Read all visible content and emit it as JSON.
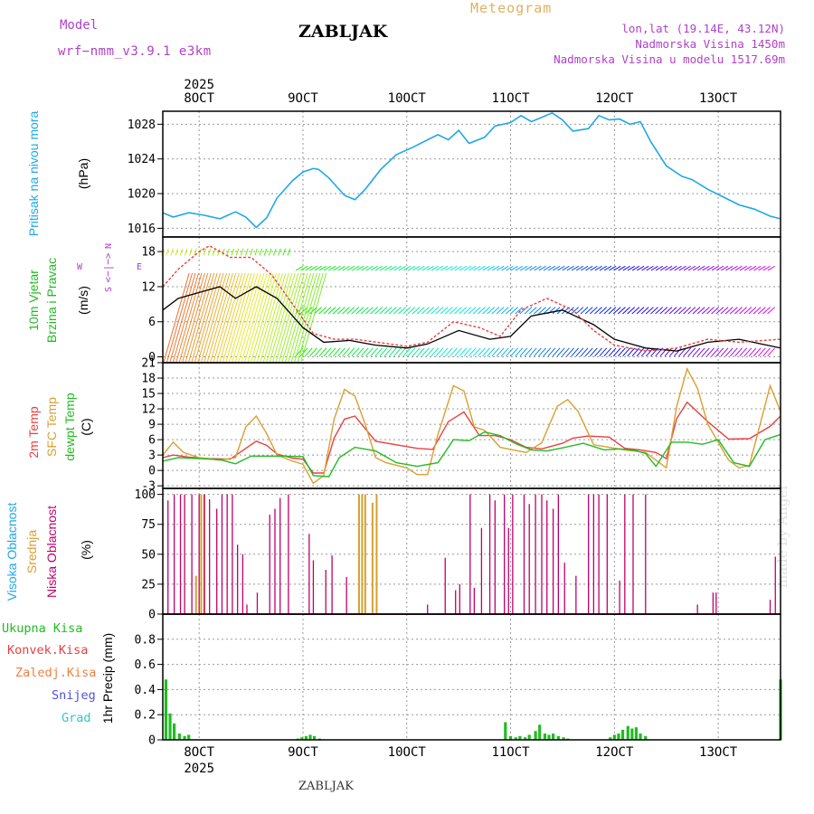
{
  "header": {
    "model_label": "Model",
    "model_version": "wrf−nmm_v3.9.1  e3km",
    "station": "ZABLJAK",
    "product": "Meteogram",
    "coords": "lon,lat (19.14E, 43.12N)",
    "elevation": "Nadmorska Visina 1450m",
    "model_elevation": "Nadmorska Visina u modelu 1517.69m",
    "footer_station": "ZABLJAK",
    "credit": "made by Angel",
    "year": "2025"
  },
  "colors": {
    "pressure": "#1ea8e8",
    "wind_axis": "#22bb22",
    "t2m": "#e84040",
    "sfc": "#d8a030",
    "dew": "#22bb22",
    "high_cloud": "#1ea8e8",
    "mid_cloud": "#d8a030",
    "low_cloud": "#c0006a",
    "total_precip": "#22bb22",
    "conv_precip": "#e84040",
    "frz_precip": "#f08040",
    "snow": "#5050e0",
    "hail": "#30c8c8",
    "gust": "#e84040",
    "direction_legend": "#b040c8"
  },
  "chart_data": [
    {
      "type": "line",
      "title": "Pritisak na nivou mora",
      "ylabel": "(hPa)",
      "xlabel": "",
      "x_ticks": [
        "8OCT",
        "9OCT",
        "10OCT",
        "11OCT",
        "12OCT",
        "13OCT"
      ],
      "x_range_days": [
        7.65,
        13.6
      ],
      "ylim": [
        1015,
        1029.5
      ],
      "y_ticks": [
        1016,
        1020,
        1024,
        1028
      ],
      "series": [
        {
          "name": "pressure",
          "x": [
            7.65,
            7.75,
            7.9,
            8.05,
            8.2,
            8.35,
            8.45,
            8.55,
            8.65,
            8.75,
            8.9,
            9.0,
            9.1,
            9.15,
            9.25,
            9.4,
            9.5,
            9.6,
            9.75,
            9.9,
            10.05,
            10.2,
            10.3,
            10.4,
            10.5,
            10.6,
            10.75,
            10.85,
            11.0,
            11.1,
            11.2,
            11.3,
            11.4,
            11.5,
            11.6,
            11.75,
            11.85,
            11.95,
            12.05,
            12.15,
            12.25,
            12.35,
            12.5,
            12.65,
            12.75,
            12.9,
            13.05,
            13.2,
            13.35,
            13.5,
            13.6
          ],
          "values": [
            1017.8,
            1017.3,
            1017.8,
            1017.5,
            1017.1,
            1017.9,
            1017.3,
            1016.1,
            1017.2,
            1019.5,
            1021.5,
            1022.5,
            1022.9,
            1022.8,
            1021.8,
            1019.8,
            1019.3,
            1020.5,
            1022.8,
            1024.5,
            1025.3,
            1026.2,
            1026.8,
            1026.2,
            1027.3,
            1025.8,
            1026.5,
            1027.8,
            1028.2,
            1029.0,
            1028.3,
            1028.8,
            1029.3,
            1028.5,
            1027.2,
            1027.5,
            1029.0,
            1028.5,
            1028.6,
            1028.0,
            1028.3,
            1026.0,
            1023.2,
            1022.0,
            1021.6,
            1020.5,
            1019.6,
            1018.7,
            1018.2,
            1017.4,
            1017.1
          ]
        }
      ]
    },
    {
      "type": "line",
      "title": "10m Vjetar Brzina i Pravac",
      "ylabel": "(m/s)",
      "direction_legend": {
        "n": "N",
        "w": "W",
        "e": "E",
        "s": "S",
        "arrow": "<−|−>"
      },
      "ylim": [
        -1,
        20.5
      ],
      "y_ticks": [
        0,
        6,
        12,
        18
      ],
      "series": [
        {
          "name": "speed",
          "x": [
            7.65,
            7.8,
            8.0,
            8.2,
            8.35,
            8.55,
            8.75,
            8.9,
            9.0,
            9.2,
            9.45,
            9.7,
            10.0,
            10.2,
            10.5,
            10.8,
            11.0,
            11.2,
            11.5,
            11.8,
            12.0,
            12.3,
            12.6,
            12.9,
            13.2,
            13.6
          ],
          "values": [
            8,
            10,
            11,
            12,
            10,
            12,
            10,
            7,
            5,
            2.5,
            2.8,
            2,
            1.5,
            2.2,
            4.5,
            3,
            3.5,
            7,
            8,
            5.5,
            3,
            1.5,
            1,
            2.5,
            3,
            1.5
          ]
        },
        {
          "name": "gust",
          "x": [
            7.65,
            7.8,
            8.0,
            8.1,
            8.3,
            8.5,
            8.7,
            8.9,
            9.1,
            9.3,
            9.5,
            9.8,
            10.0,
            10.2,
            10.45,
            10.7,
            10.9,
            11.1,
            11.35,
            11.6,
            11.8,
            12.0,
            12.3,
            12.6,
            12.9,
            13.2,
            13.6
          ],
          "values": [
            12,
            15,
            18,
            19,
            17,
            17,
            14,
            9,
            4,
            3,
            3,
            2.3,
            1.8,
            2.5,
            6,
            5,
            3.5,
            8,
            10,
            8,
            4.5,
            2,
            1,
            1.5,
            3,
            2.5,
            3
          ]
        }
      ]
    },
    {
      "type": "line",
      "title": "2m Temp / SFC Temp / dewpt Temp",
      "ylabel": "(C)",
      "ylim": [
        -3.5,
        21
      ],
      "y_ticks": [
        -3,
        0,
        3,
        6,
        9,
        12,
        15,
        18,
        21
      ],
      "series": [
        {
          "name": "2m Temp",
          "x": [
            7.65,
            7.75,
            7.9,
            8.1,
            8.3,
            8.45,
            8.55,
            8.65,
            8.75,
            8.9,
            9.0,
            9.1,
            9.2,
            9.3,
            9.4,
            9.5,
            9.7,
            9.9,
            10.1,
            10.25,
            10.4,
            10.55,
            10.7,
            10.85,
            11.0,
            11.15,
            11.3,
            11.5,
            11.6,
            11.75,
            11.95,
            12.1,
            12.25,
            12.4,
            12.5,
            12.6,
            12.7,
            12.9,
            13.1,
            13.3,
            13.5,
            13.6
          ],
          "values": [
            2.5,
            3.0,
            2.6,
            2.3,
            2.2,
            4.3,
            5.7,
            4.9,
            3.2,
            2.4,
            2.2,
            -0.5,
            -0.5,
            6.3,
            10.0,
            10.6,
            5.7,
            5.0,
            4.3,
            4.1,
            9.5,
            11.4,
            6.8,
            6.8,
            6.0,
            4.5,
            4.2,
            5.3,
            6.3,
            6.7,
            6.5,
            4.3,
            4.0,
            3.5,
            2.3,
            10.1,
            13.3,
            9.5,
            6.1,
            6.2,
            8.6,
            10.6
          ]
        },
        {
          "name": "SFC Temp",
          "x": [
            7.65,
            7.75,
            7.85,
            8.0,
            8.2,
            8.35,
            8.45,
            8.55,
            8.65,
            8.75,
            8.9,
            9.0,
            9.1,
            9.2,
            9.3,
            9.4,
            9.5,
            9.6,
            9.7,
            9.8,
            10.0,
            10.1,
            10.2,
            10.3,
            10.45,
            10.55,
            10.65,
            10.75,
            10.9,
            11.0,
            11.15,
            11.3,
            11.45,
            11.55,
            11.65,
            11.8,
            11.95,
            12.1,
            12.3,
            12.4,
            12.5,
            12.6,
            12.7,
            12.8,
            12.9,
            13.1,
            13.2,
            13.3,
            13.5,
            13.6
          ],
          "values": [
            3,
            5.5,
            3.5,
            2.5,
            2,
            2.5,
            8.5,
            10.6,
            7.2,
            3.0,
            1.8,
            1.2,
            -2.5,
            -1.0,
            10.0,
            15.8,
            14.5,
            9.0,
            2.5,
            1.5,
            0.5,
            -0.8,
            -0.8,
            7.0,
            16.5,
            15.5,
            8.5,
            7.8,
            4.5,
            4.1,
            3.5,
            5.4,
            12.5,
            13.8,
            11.5,
            5.0,
            4.5,
            4.0,
            3.5,
            2.0,
            0.5,
            12.5,
            19.8,
            16.0,
            9.0,
            2.0,
            0.5,
            1.0,
            16.5,
            11.5
          ]
        },
        {
          "name": "dewpt Temp",
          "x": [
            7.65,
            7.8,
            8.0,
            8.2,
            8.35,
            8.5,
            8.65,
            8.8,
            9.0,
            9.1,
            9.25,
            9.35,
            9.5,
            9.7,
            9.9,
            10.1,
            10.3,
            10.45,
            10.6,
            10.75,
            10.9,
            11.05,
            11.2,
            11.35,
            11.5,
            11.7,
            11.9,
            12.05,
            12.2,
            12.3,
            12.4,
            12.55,
            12.7,
            12.85,
            13.0,
            13.15,
            13.3,
            13.45,
            13.6
          ],
          "values": [
            1.8,
            2.5,
            2.3,
            2.1,
            1.3,
            2.8,
            2.8,
            2.8,
            2.7,
            -1.0,
            -1.2,
            2.5,
            4.5,
            3.8,
            1.5,
            0.8,
            1.5,
            6.0,
            5.8,
            7.5,
            6.8,
            5.2,
            4.0,
            3.8,
            4.4,
            5.3,
            4.0,
            4.2,
            3.9,
            3.3,
            0.8,
            5.5,
            5.5,
            5.1,
            6.0,
            1.5,
            0.8,
            6.0,
            7.0
          ]
        }
      ]
    },
    {
      "type": "bar",
      "title": "Visoka / Srednja / Niska Oblacnost",
      "ylabel": "(%)",
      "ylim": [
        0,
        105
      ],
      "y_ticks": [
        0,
        25,
        50,
        75,
        100
      ],
      "series": [
        {
          "name": "Srednja Oblacnost",
          "x": [
            7.97,
            8.02,
            8.05,
            9.54,
            9.57,
            9.6,
            9.67,
            9.71
          ],
          "values": [
            32,
            100,
            100,
            100,
            100,
            100,
            93,
            100
          ]
        },
        {
          "name": "Niska Oblacnost",
          "x": [
            7.7,
            7.76,
            7.82,
            7.86,
            7.93,
            8.0,
            8.05,
            8.1,
            8.17,
            8.22,
            8.27,
            8.32,
            8.37,
            8.42,
            8.46,
            8.56,
            8.68,
            8.73,
            8.78,
            8.86,
            9.06,
            9.1,
            9.22,
            9.28,
            9.42,
            10.2,
            10.37,
            10.47,
            10.51,
            10.61,
            10.65,
            10.72,
            10.8,
            10.85,
            10.94,
            10.98,
            11.02,
            11.13,
            11.18,
            11.24,
            11.3,
            11.35,
            11.41,
            11.46,
            11.52,
            11.63,
            11.75,
            11.8,
            11.85,
            11.93,
            12.05,
            12.1,
            12.18,
            12.3,
            12.8,
            12.95,
            12.98,
            13.5,
            13.55
          ],
          "values": [
            95,
            100,
            100,
            100,
            100,
            100,
            100,
            96,
            88,
            100,
            100,
            100,
            58,
            50,
            8,
            18,
            83,
            88,
            97,
            100,
            67,
            45,
            37,
            49,
            31,
            8,
            47,
            20,
            25,
            100,
            22,
            72,
            100,
            95,
            100,
            72,
            100,
            100,
            92,
            100,
            100,
            95,
            88,
            100,
            43,
            32,
            100,
            100,
            100,
            100,
            28,
            100,
            100,
            100,
            8,
            18,
            18,
            12,
            48
          ]
        }
      ]
    },
    {
      "type": "bar",
      "title": "1hr Precip",
      "ylabel": "1hr Precip (mm)",
      "ylim": [
        0,
        1.0
      ],
      "y_ticks": [
        0,
        0.2,
        0.4,
        0.6,
        0.8
      ],
      "legend": [
        "Ukupna Kisa",
        "Konvek.Kisa",
        "Zaledj.Kisa",
        "Snijeg",
        "Grad"
      ],
      "series": [
        {
          "name": "Ukupna Kisa",
          "x": [
            7.68,
            7.72,
            7.76,
            7.81,
            7.86,
            7.9,
            8.95,
            8.99,
            9.03,
            9.07,
            9.11,
            9.16,
            10.95,
            11.0,
            11.05,
            11.09,
            11.14,
            11.18,
            11.24,
            11.28,
            11.33,
            11.37,
            11.41,
            11.46,
            11.51,
            11.55,
            11.96,
            12.0,
            12.04,
            12.08,
            12.13,
            12.17,
            12.21,
            12.25,
            12.3,
            13.6
          ],
          "values": [
            0.48,
            0.21,
            0.13,
            0.05,
            0.03,
            0.04,
            0.01,
            0.02,
            0.03,
            0.04,
            0.03,
            0.01,
            0.14,
            0.03,
            0.02,
            0.03,
            0.02,
            0.04,
            0.07,
            0.12,
            0.05,
            0.04,
            0.05,
            0.03,
            0.02,
            0.01,
            0.02,
            0.04,
            0.05,
            0.08,
            0.11,
            0.09,
            0.1,
            0.05,
            0.03,
            0.48
          ]
        }
      ]
    }
  ]
}
